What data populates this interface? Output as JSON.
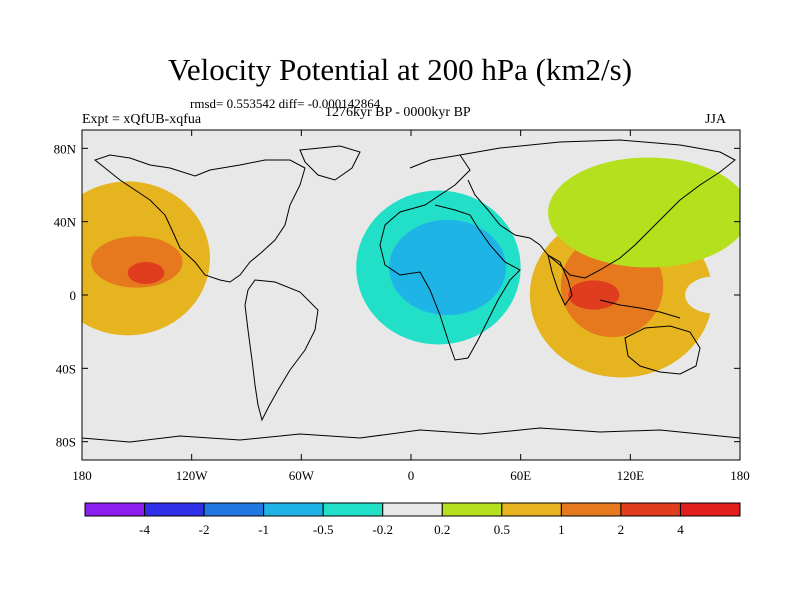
{
  "chart_data": {
    "type": "heatmap",
    "title": "Velocity Potential at 200 hPa (km2/s)",
    "rmsd_label": "rmsd= 0.553542 diff= -0.000142864",
    "experiment_label": "Expt = xQfUB-xqfua",
    "period_label": "1276kyr BP - 0000kyr BP",
    "season_label": "JJA",
    "x_axis": {
      "range": [
        -180,
        180
      ],
      "ticks": [
        -180,
        -120,
        -60,
        0,
        60,
        120,
        180
      ],
      "tick_labels": [
        "180",
        "120W",
        "60W",
        "0",
        "60E",
        "120E",
        "180"
      ]
    },
    "y_axis": {
      "range": [
        -90,
        90
      ],
      "ticks": [
        80,
        40,
        0,
        -40,
        -80
      ],
      "tick_labels": [
        "80N",
        "40N",
        "0",
        "40S",
        "80S"
      ]
    },
    "colorbar": {
      "boundaries": [
        -4,
        -2,
        -1,
        -0.5,
        -0.2,
        0.2,
        0.5,
        1,
        2,
        4
      ],
      "labels": [
        "-4",
        "-2",
        "-1",
        "-0.5",
        "-0.2",
        "0.2",
        "0.5",
        "1",
        "2",
        "4"
      ],
      "colors": [
        "#8a1ff0",
        "#2f2fe8",
        "#1f78e0",
        "#1fb4e6",
        "#22e0c8",
        "#e8e8e8",
        "#b4e01e",
        "#e6b41e",
        "#e6781e",
        "#e03c1e",
        "#e01e1e"
      ]
    },
    "regions": [
      {
        "name": "north-pacific-positive",
        "level": 0.5,
        "center": [
          -155,
          20
        ],
        "radius": [
          45,
          42
        ]
      },
      {
        "name": "north-pacific-positive-core",
        "level": 1,
        "center": [
          -150,
          18
        ],
        "radius": [
          25,
          14
        ]
      },
      {
        "name": "north-pacific-positive-max",
        "level": 2,
        "center": [
          -145,
          12
        ],
        "radius": [
          10,
          6
        ]
      },
      {
        "name": "africa-negative-outer",
        "level": -0.2,
        "center": [
          15,
          10
        ],
        "radius": [
          65,
          68
        ]
      },
      {
        "name": "africa-negative",
        "level": -0.5,
        "center": [
          15,
          15
        ],
        "radius": [
          45,
          42
        ]
      },
      {
        "name": "africa-negative-core",
        "level": -1,
        "center": [
          20,
          15
        ],
        "radius": [
          32,
          26
        ]
      },
      {
        "name": "indo-pacific-positive",
        "level": 0.5,
        "center": [
          115,
          0
        ],
        "radius": [
          50,
          45
        ]
      },
      {
        "name": "indo-pacific-positive-core",
        "level": 1,
        "center": [
          110,
          5
        ],
        "radius": [
          28,
          28
        ]
      },
      {
        "name": "indo-pacific-positive-max",
        "level": 2,
        "center": [
          100,
          0
        ],
        "radius": [
          14,
          8
        ]
      },
      {
        "name": "east-asia-positive",
        "level": 0.2,
        "center": [
          130,
          45
        ],
        "radius": [
          55,
          30
        ]
      },
      {
        "name": "south-pacific-negative",
        "level": -0.2,
        "center": [
          -140,
          -30
        ],
        "radius": [
          15,
          6
        ]
      },
      {
        "name": "west-pacific-negative",
        "level": -0.2,
        "center": [
          165,
          0
        ],
        "radius": [
          15,
          10
        ]
      }
    ]
  }
}
